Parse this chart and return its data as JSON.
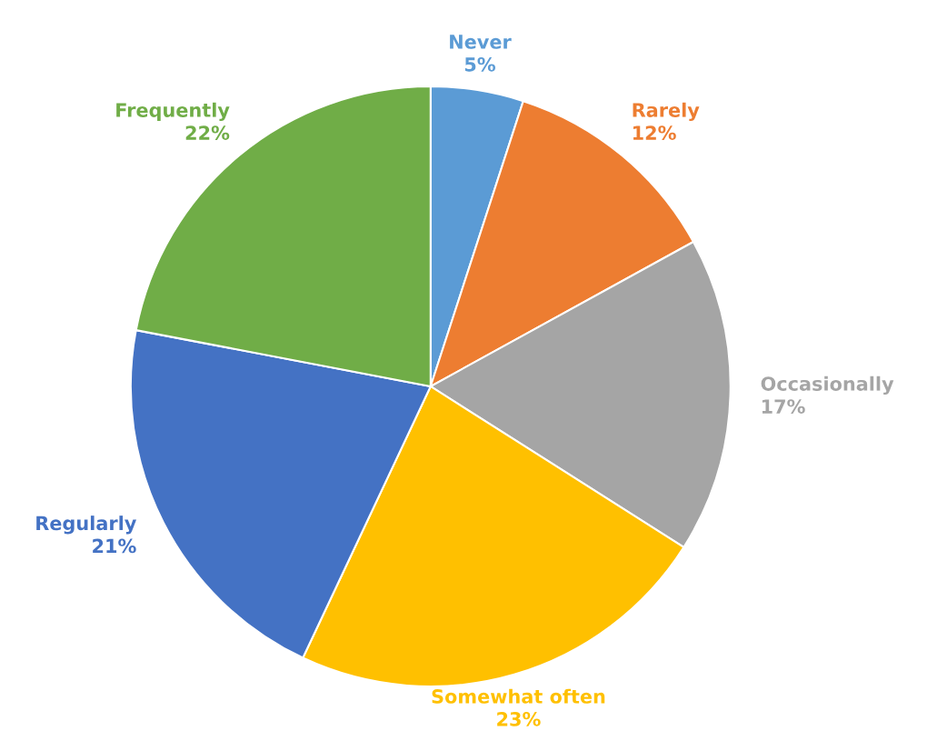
{
  "chart_data": {
    "type": "pie",
    "categories": [
      "Never",
      "Rarely",
      "Occasionally",
      "Somewhat often",
      "Regularly",
      "Frequently"
    ],
    "values": [
      5,
      12,
      17,
      23,
      21,
      22
    ],
    "value_labels": [
      "5%",
      "12%",
      "17%",
      "23%",
      "21%",
      "22%"
    ],
    "colors": [
      "#5b9bd5",
      "#ed7d31",
      "#a5a5a5",
      "#ffc000",
      "#4472c4",
      "#70ad47"
    ],
    "legend": false
  }
}
